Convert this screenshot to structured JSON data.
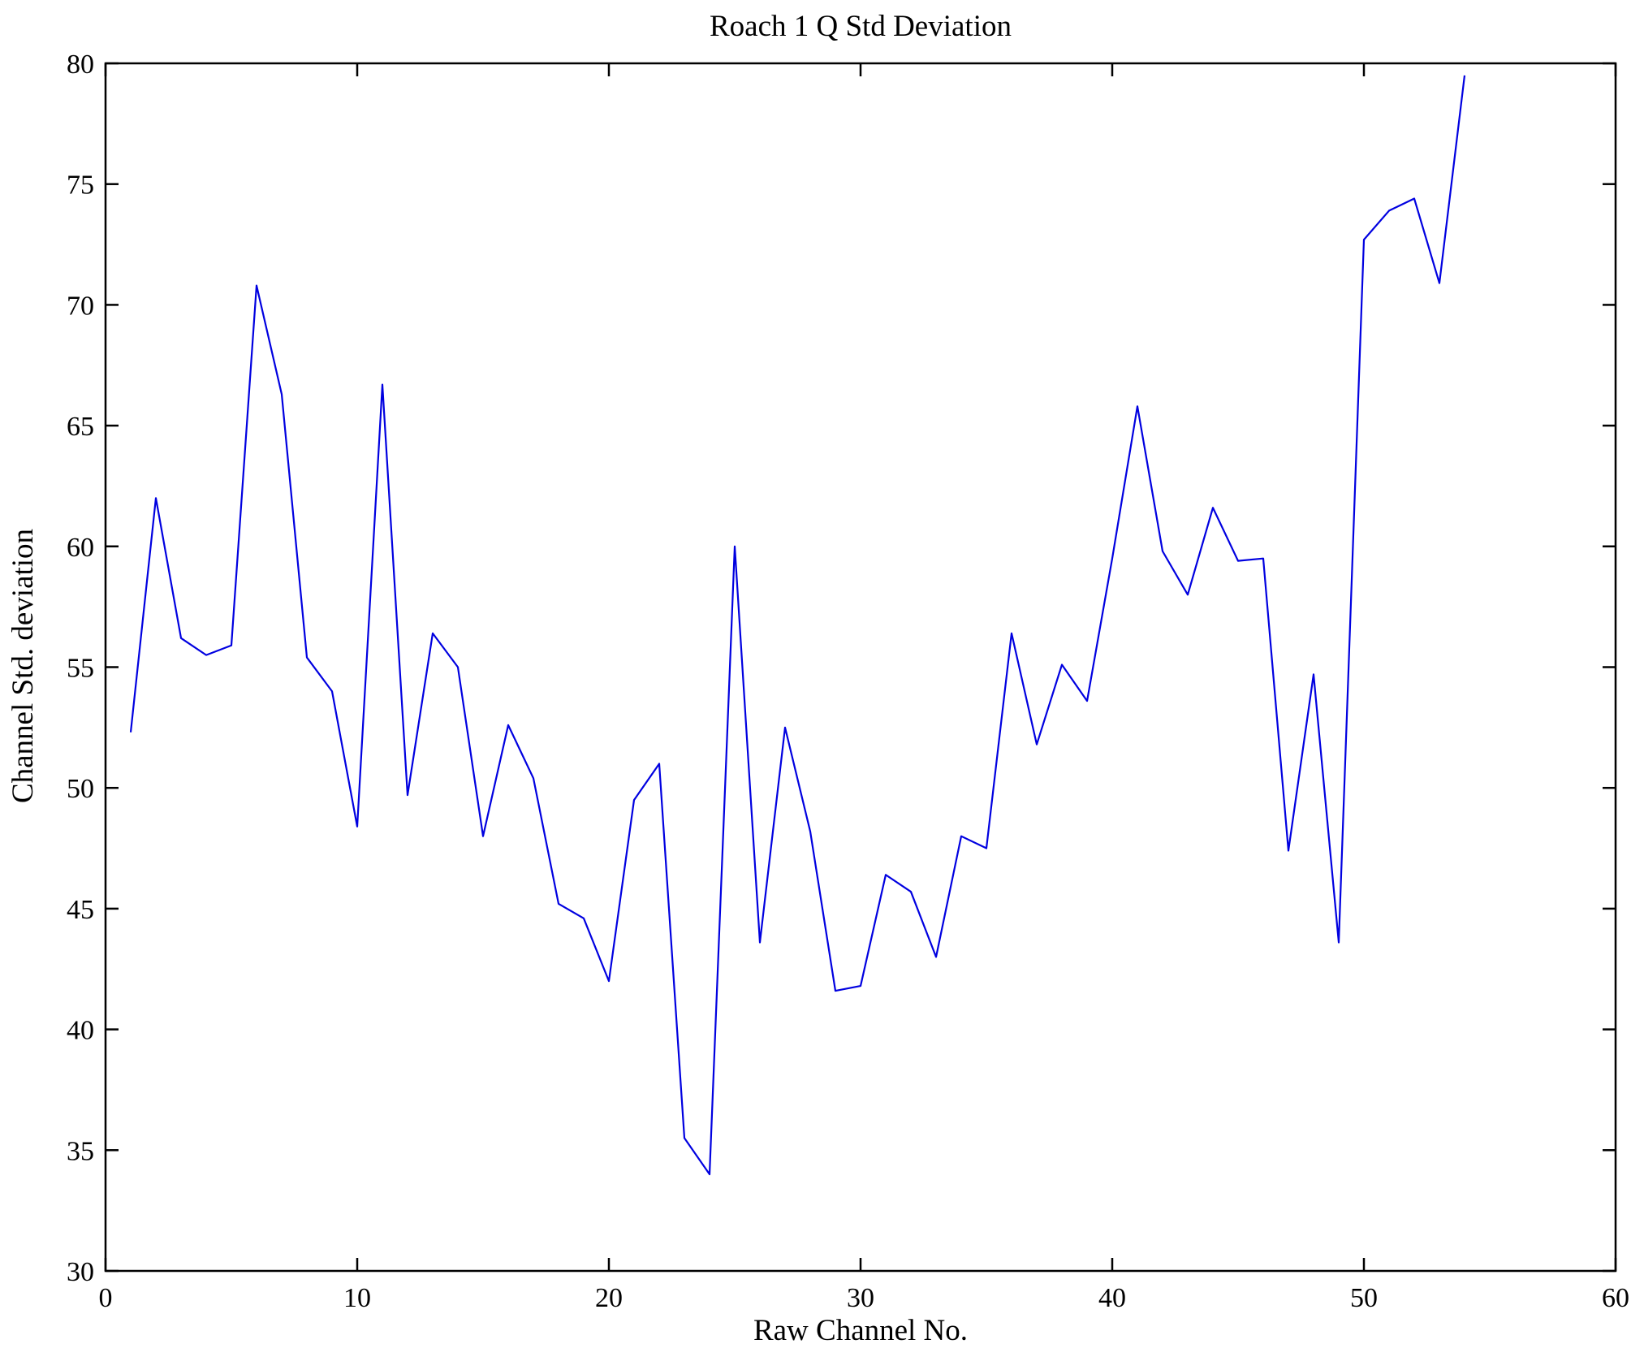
{
  "chart_data": {
    "type": "line",
    "title": "Roach 1 Q Std Deviation",
    "xlabel": "Raw Channel No.",
    "ylabel": "Channel Std. deviation",
    "xlim": [
      0,
      60
    ],
    "ylim": [
      30,
      80
    ],
    "xticks": [
      0,
      10,
      20,
      30,
      40,
      50,
      60
    ],
    "yticks": [
      30,
      35,
      40,
      45,
      50,
      55,
      60,
      65,
      70,
      75,
      80
    ],
    "grid": false,
    "legend": "none",
    "line_color": "#0000e0",
    "axis_color": "#000000",
    "series": [
      {
        "name": "Channel Std. deviation",
        "x": [
          1,
          2,
          3,
          4,
          5,
          6,
          7,
          8,
          9,
          10,
          11,
          12,
          13,
          14,
          15,
          16,
          17,
          18,
          19,
          20,
          21,
          22,
          23,
          24,
          25,
          26,
          27,
          28,
          29,
          30,
          31,
          32,
          33,
          34,
          35,
          36,
          37,
          38,
          39,
          40,
          41,
          42,
          43,
          44,
          45,
          46,
          47,
          48,
          49,
          50,
          51,
          52,
          53,
          54
        ],
        "values": [
          52.3,
          62.0,
          56.2,
          55.5,
          55.9,
          70.8,
          66.3,
          55.4,
          54.0,
          48.4,
          66.7,
          49.7,
          56.4,
          55.0,
          48.0,
          52.6,
          50.4,
          45.2,
          44.6,
          42.0,
          49.5,
          51.0,
          35.5,
          34.0,
          60.0,
          43.6,
          52.5,
          48.2,
          41.6,
          41.8,
          46.4,
          45.7,
          43.0,
          48.0,
          47.5,
          56.4,
          51.8,
          55.1,
          53.6,
          59.5,
          65.8,
          59.8,
          58.0,
          61.6,
          59.4,
          59.5,
          47.4,
          54.7,
          43.6,
          72.7,
          73.9,
          74.4,
          70.9,
          79.5
        ]
      }
    ]
  }
}
